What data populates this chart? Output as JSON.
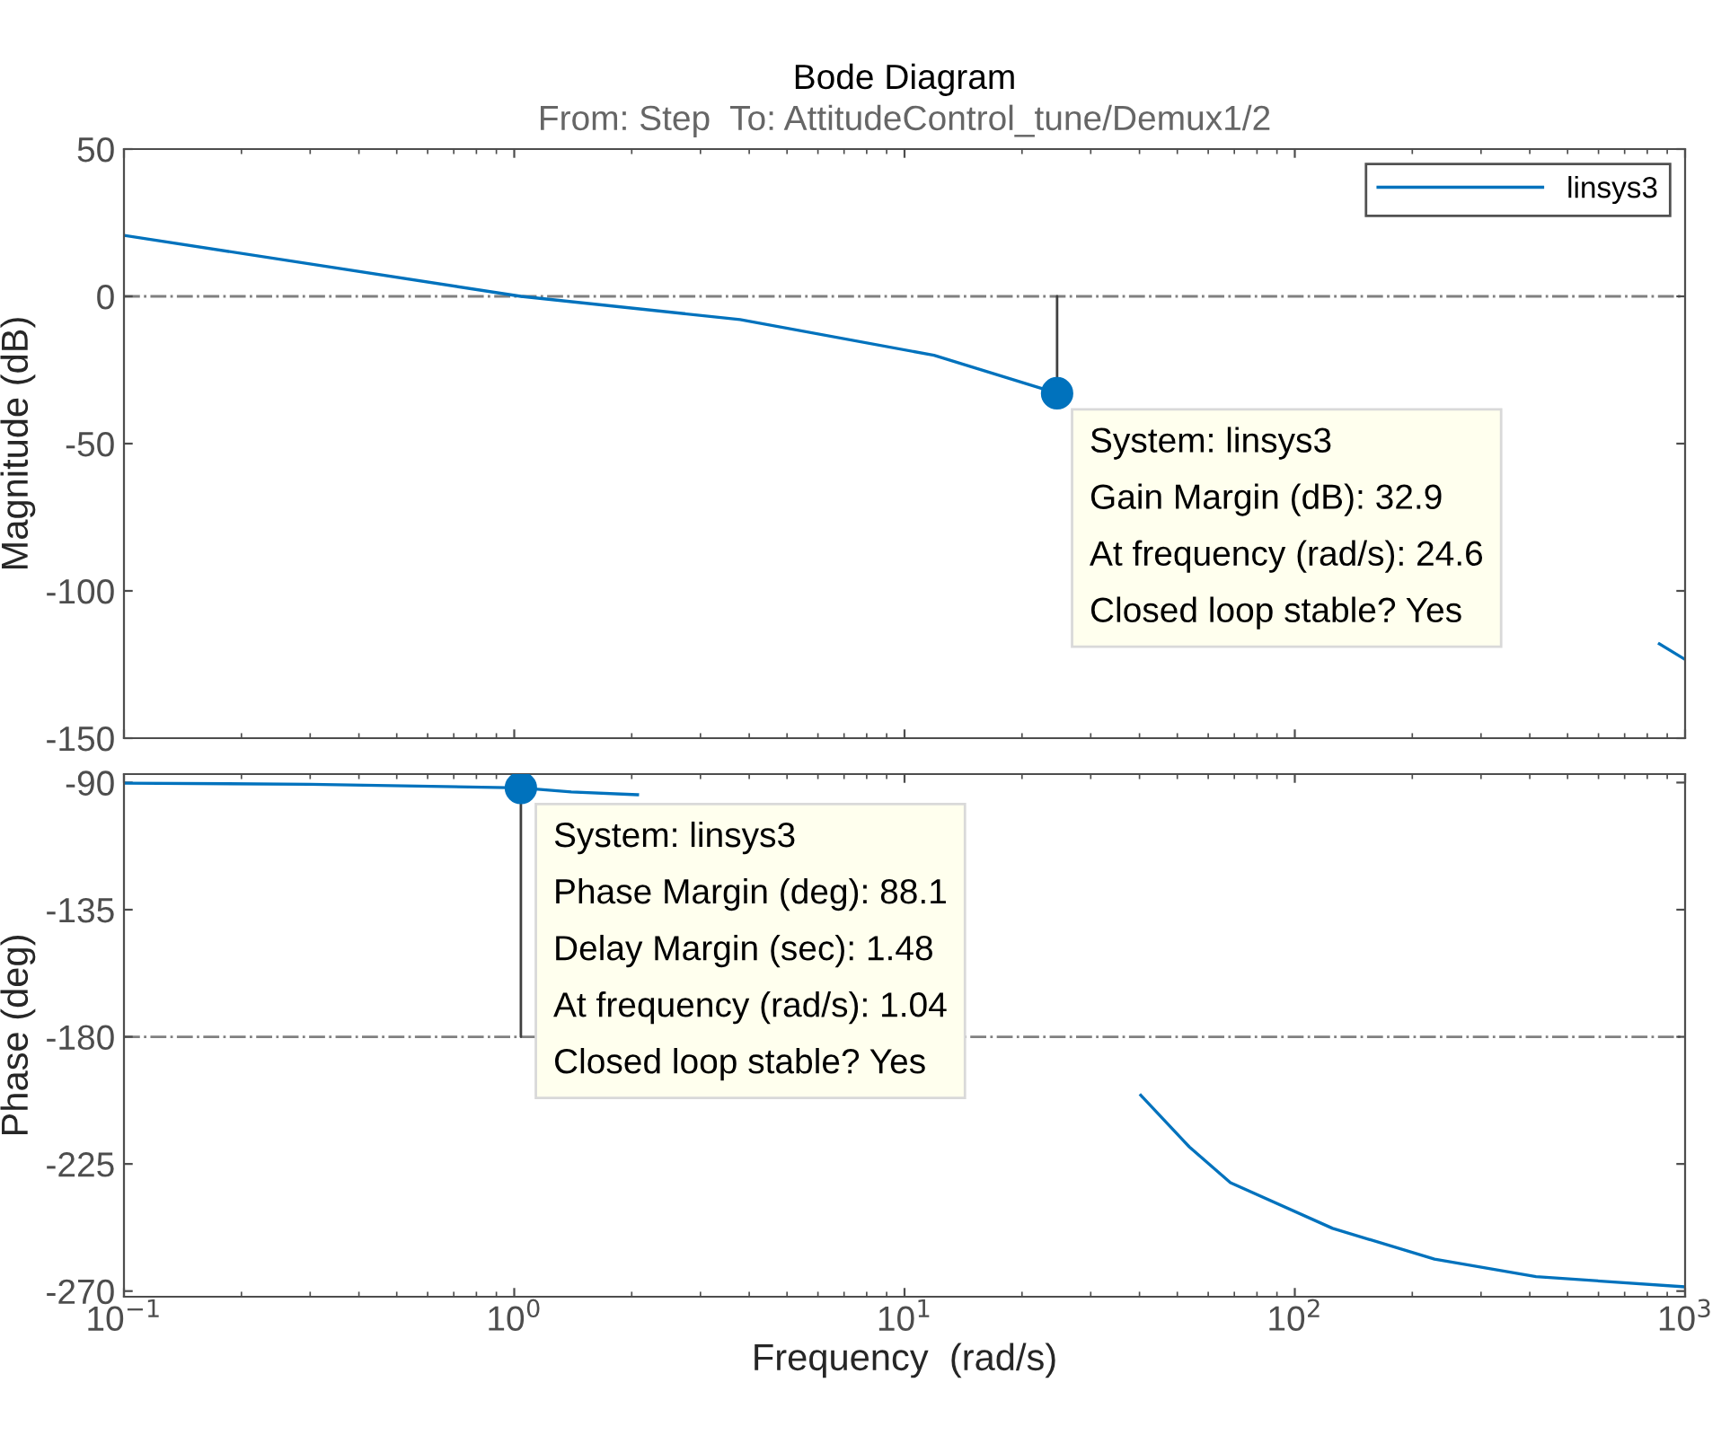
{
  "chart_data": [
    {
      "type": "line",
      "title": "Bode Diagram",
      "subtitle": "From: Step  To: AttitudeControl_tune/Demux1/2",
      "ylabel": "Magnitude (dB)",
      "log": "x",
      "xlim": [
        0.1,
        1000
      ],
      "xticks": [
        {
          "value": 0.1,
          "label": null
        },
        {
          "value": 1,
          "label": null
        },
        {
          "value": 10,
          "label": null
        },
        {
          "value": 100,
          "label": null
        },
        {
          "value": 1000,
          "label": null
        }
      ],
      "ylim": [
        -150,
        50
      ],
      "yticks": [
        -150,
        -100,
        -50,
        0,
        50
      ],
      "tick_labels": "y",
      "grid": false,
      "legend": "top right",
      "marker": "none",
      "line_style": "solid",
      "series": [
        {
          "name": "linsys3",
          "color": "#0072bd",
          "x": [
            0.1,
            1.04,
            3.79,
            11.9,
            24.6,
            100,
            859,
            1000
          ],
          "values": [
            20.7,
            0,
            -7.9,
            -20,
            -32.9,
            null,
            -118,
            -123.3
          ]
        }
      ],
      "ref_lines": [
        {
          "axis": "y",
          "value": 0,
          "color": "#808080",
          "line_style": "dashdot"
        }
      ],
      "annotations": [
        {
          "text": "System: linsys3\nGain Margin (dB): 32.9\nAt frequency (rad/s): 24.6\nClosed loop stable? Yes",
          "x": 24.6,
          "y": -32.9
        }
      ]
    },
    {
      "type": "line",
      "xlabel": "Frequency  (rad/s)",
      "ylabel": "Phase (deg)",
      "log": "x",
      "xlim": [
        0.1,
        1000
      ],
      "xticks": [
        {
          "value": 0.1,
          "label": "10$^{−1}$"
        },
        {
          "value": 1,
          "label": "10$^{0}$"
        },
        {
          "value": 10,
          "label": "10$^{1}$"
        },
        {
          "value": 100,
          "label": "10$^{2}$"
        },
        {
          "value": 1000,
          "label": "10$^{3}$"
        }
      ],
      "ylim": [
        -272,
        -87
      ],
      "yticks": [
        -270,
        -225,
        -180,
        -135,
        -90
      ],
      "grid": false,
      "legend": false,
      "marker": "none",
      "line_style": "solid",
      "series": [
        {
          "color": "#0072bd",
          "x": [
            0.1,
            0.3,
            1.04,
            1.4,
            2.07,
            10,
            40.3,
            53.7,
            68.4,
            125,
            228,
            415,
            1000
          ],
          "values": [
            -90.2,
            -90.6,
            -91.9,
            -93.3,
            -94.3,
            null,
            -200.7,
            -219,
            -231.6,
            -247.8,
            -258.7,
            -264.9,
            -268.5
          ]
        }
      ],
      "ref_lines": [
        {
          "axis": "y",
          "value": -180,
          "color": "#808080",
          "line_style": "dashdot"
        }
      ],
      "annotations": [
        {
          "text": "System: linsys3\nPhase Margin (deg): 88.1\nDelay Margin (sec): 1.48\nAt frequency (rad/s): 1.04\nClosed loop stable? Yes",
          "x": 1.04,
          "y": -91.9
        }
      ]
    }
  ]
}
